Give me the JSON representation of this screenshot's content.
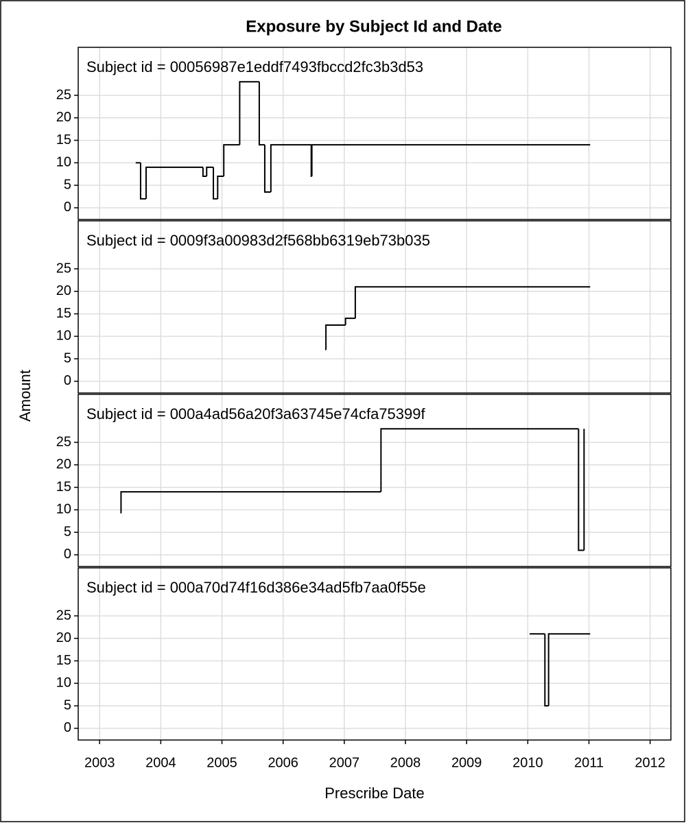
{
  "chart_data": {
    "type": "step",
    "title": "Exposure by Subject Id and Date",
    "xlabel": "Prescribe Date",
    "ylabel": "Amount",
    "xlim": [
      2002.65,
      2012.34
    ],
    "xticks": [
      2003,
      2004,
      2005,
      2006,
      2007,
      2008,
      2009,
      2010,
      2011,
      2012
    ],
    "ylim": [
      -2.6,
      35.67
    ],
    "yticks": [
      0,
      5,
      10,
      15,
      20,
      25
    ],
    "grid": true,
    "color": "#000000",
    "series": [
      {
        "name": "Subject id = 00056987e1eddf7493fbccd2fc3b3d53",
        "x": [
          2003.59,
          2003.67,
          2003.76,
          2004.69,
          2004.75,
          2004.86,
          2004.93,
          2005.03,
          2005.29,
          2005.61,
          2005.7,
          2005.8,
          2006.46,
          2006.47,
          2011.02
        ],
        "values": [
          10,
          2,
          9,
          7,
          9,
          2,
          7,
          14,
          28,
          14,
          3.5,
          14,
          7,
          14,
          14
        ]
      },
      {
        "name": "Subject id = 0009f3a00983d2f568bb6319eb73b035",
        "x": [
          2006.69,
          2006.7,
          2007.02,
          2007.18,
          2011.02
        ],
        "values": [
          7,
          12.5,
          14,
          21,
          21
        ]
      },
      {
        "name": "Subject id = 000a4ad56a20f3a63745e74cfa75399f",
        "x": [
          2003.34,
          2003.35,
          2007.6,
          2010.83,
          2010.92
        ],
        "values": [
          9.3,
          14,
          28,
          1,
          28
        ]
      },
      {
        "name": "Subject id = 000a70d74f16d386e34ad5fb7aa0f55e",
        "x": [
          2010.03,
          2010.28,
          2010.34,
          2011.02
        ],
        "values": [
          21,
          5,
          21,
          21
        ]
      }
    ]
  }
}
